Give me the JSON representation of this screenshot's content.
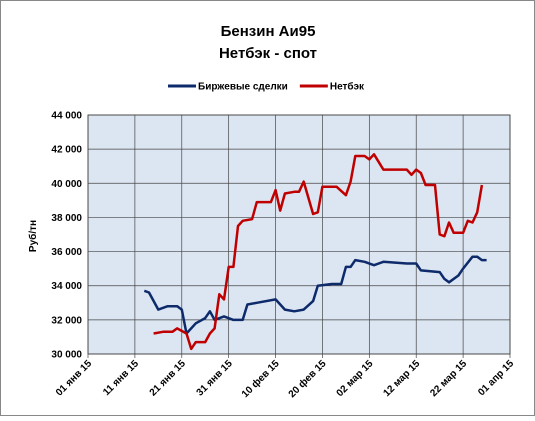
{
  "chart_data": {
    "type": "line",
    "title": "Бензин Аи95",
    "subtitle": "Нетбэк - спот",
    "ylabel": "Руб/тн",
    "xlim": [
      "2015-01-01",
      "2015-04-01"
    ],
    "xticks": [
      {
        "value": "2015-01-01",
        "label": "01 янв 15"
      },
      {
        "value": "2015-01-11",
        "label": "11 янв 15"
      },
      {
        "value": "2015-01-21",
        "label": "21 янв 15"
      },
      {
        "value": "2015-01-31",
        "label": "31 янв 15"
      },
      {
        "value": "2015-02-10",
        "label": "10 фев 15"
      },
      {
        "value": "2015-02-20",
        "label": "20 фев 15"
      },
      {
        "value": "2015-03-02",
        "label": "02 мар 15"
      },
      {
        "value": "2015-03-12",
        "label": "12 мар 15"
      },
      {
        "value": "2015-03-22",
        "label": "22 мар 15"
      },
      {
        "value": "2015-04-01",
        "label": "01 апр 15"
      }
    ],
    "ylim": [
      30000,
      44000
    ],
    "yticks": [
      {
        "value": 30000,
        "label": "30 000"
      },
      {
        "value": 32000,
        "label": "32 000"
      },
      {
        "value": 34000,
        "label": "34 000"
      },
      {
        "value": 36000,
        "label": "36 000"
      },
      {
        "value": 38000,
        "label": "38 000"
      },
      {
        "value": 40000,
        "label": "40 000"
      },
      {
        "value": 42000,
        "label": "42 000"
      },
      {
        "value": 44000,
        "label": "44 000"
      }
    ],
    "grid": true,
    "legend": "top",
    "series": [
      {
        "name": "Биржевые сделки",
        "color": "#0d2a6b",
        "x": [
          "2015-01-13",
          "2015-01-14",
          "2015-01-16",
          "2015-01-18",
          "2015-01-20",
          "2015-01-21",
          "2015-01-22",
          "2015-01-24",
          "2015-01-26",
          "2015-01-27",
          "2015-01-28",
          "2015-01-30",
          "2015-02-01",
          "2015-02-03",
          "2015-02-04",
          "2015-02-06",
          "2015-02-10",
          "2015-02-12",
          "2015-02-14",
          "2015-02-16",
          "2015-02-18",
          "2015-02-19",
          "2015-02-22",
          "2015-02-24",
          "2015-02-25",
          "2015-02-26",
          "2015-02-27",
          "2015-03-01",
          "2015-03-03",
          "2015-03-05",
          "2015-03-10",
          "2015-03-12",
          "2015-03-13",
          "2015-03-17",
          "2015-03-18",
          "2015-03-19",
          "2015-03-21",
          "2015-03-22",
          "2015-03-24",
          "2015-03-25",
          "2015-03-26",
          "2015-03-27"
        ],
        "values": [
          33700,
          33600,
          32600,
          32800,
          32800,
          32600,
          31200,
          31800,
          32100,
          32500,
          32000,
          32200,
          32000,
          32000,
          32900,
          33000,
          33200,
          32600,
          32500,
          32600,
          33100,
          34000,
          34100,
          34100,
          35100,
          35100,
          35500,
          35400,
          35200,
          35400,
          35300,
          35300,
          34900,
          34800,
          34400,
          34200,
          34600,
          35000,
          35700,
          35700,
          35500,
          35500
        ]
      },
      {
        "name": "Нетбэк",
        "color": "#c00000",
        "x": [
          "2015-01-15",
          "2015-01-17",
          "2015-01-19",
          "2015-01-20",
          "2015-01-22",
          "2015-01-23",
          "2015-01-24",
          "2015-01-26",
          "2015-01-27",
          "2015-01-28",
          "2015-01-29",
          "2015-01-30",
          "2015-01-31",
          "2015-02-01",
          "2015-02-02",
          "2015-02-03",
          "2015-02-05",
          "2015-02-06",
          "2015-02-09",
          "2015-02-10",
          "2015-02-11",
          "2015-02-12",
          "2015-02-14",
          "2015-02-15",
          "2015-02-16",
          "2015-02-18",
          "2015-02-19",
          "2015-02-20",
          "2015-02-23",
          "2015-02-25",
          "2015-02-26",
          "2015-02-27",
          "2015-03-01",
          "2015-03-02",
          "2015-03-03",
          "2015-03-05",
          "2015-03-08",
          "2015-03-10",
          "2015-03-11",
          "2015-03-12",
          "2015-03-13",
          "2015-03-14",
          "2015-03-16",
          "2015-03-17",
          "2015-03-18",
          "2015-03-19",
          "2015-03-20",
          "2015-03-22",
          "2015-03-23",
          "2015-03-24",
          "2015-03-25",
          "2015-03-26"
        ],
        "values": [
          31200,
          31300,
          31300,
          31500,
          31200,
          30300,
          30700,
          30700,
          31200,
          31500,
          33500,
          33200,
          35100,
          35100,
          37500,
          37800,
          37900,
          38900,
          38900,
          39600,
          38400,
          39400,
          39500,
          39500,
          40100,
          38200,
          38300,
          39800,
          39800,
          39300,
          40100,
          41600,
          41600,
          41400,
          41700,
          40800,
          40800,
          40800,
          40500,
          40800,
          40600,
          39900,
          39900,
          37000,
          36900,
          37700,
          37100,
          37100,
          37800,
          37700,
          38300,
          39900
        ]
      }
    ]
  }
}
